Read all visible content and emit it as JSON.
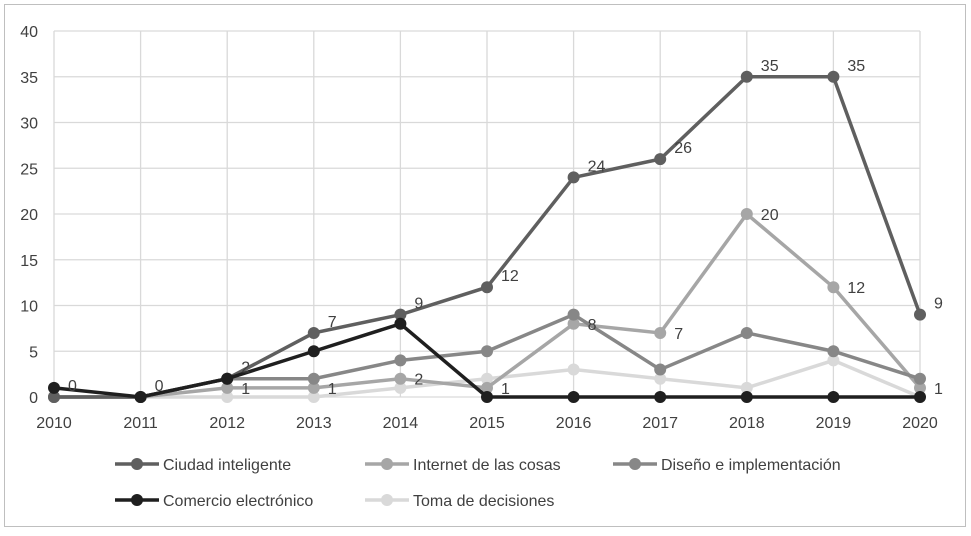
{
  "chart_data": {
    "type": "line",
    "title": "",
    "xlabel": "",
    "ylabel": "",
    "x": [
      "2010",
      "2011",
      "2012",
      "2013",
      "2014",
      "2015",
      "2016",
      "2017",
      "2018",
      "2019",
      "2020"
    ],
    "ylim": [
      0,
      40
    ],
    "yticks": [
      "0",
      "5",
      "10",
      "15",
      "20",
      "25",
      "30",
      "35",
      "40"
    ],
    "grid": true,
    "legend_position": "bottom",
    "series": [
      {
        "name": "Ciudad inteligente",
        "color": "#5f5f5f",
        "values": [
          0,
          0,
          2,
          7,
          9,
          12,
          24,
          26,
          35,
          35,
          9
        ],
        "labels": [
          "0",
          "0",
          "2",
          "7",
          "9",
          "12",
          "24",
          "26",
          "35",
          "35",
          "9"
        ]
      },
      {
        "name": "Internet de las cosas",
        "color": "#a6a6a6",
        "values": [
          0,
          0,
          1,
          1,
          2,
          1,
          8,
          7,
          20,
          12,
          1
        ],
        "labels": [
          null,
          null,
          "1",
          "1",
          "2",
          "1",
          "8",
          "7",
          "20",
          "12",
          "1"
        ]
      },
      {
        "name": "Diseño e implementación",
        "color": "#878787",
        "values": [
          0,
          0,
          2,
          2,
          4,
          5,
          9,
          3,
          7,
          5,
          2
        ],
        "labels": []
      },
      {
        "name": "Comercio electrónico",
        "color": "#1f1f1f",
        "values": [
          1,
          0,
          2,
          5,
          8,
          0,
          0,
          0,
          0,
          0,
          0
        ],
        "labels": []
      },
      {
        "name": "Toma de decisiones",
        "color": "#d9d9d9",
        "values": [
          0,
          0,
          0,
          0,
          1,
          2,
          3,
          2,
          1,
          4,
          0
        ],
        "labels": []
      }
    ]
  }
}
